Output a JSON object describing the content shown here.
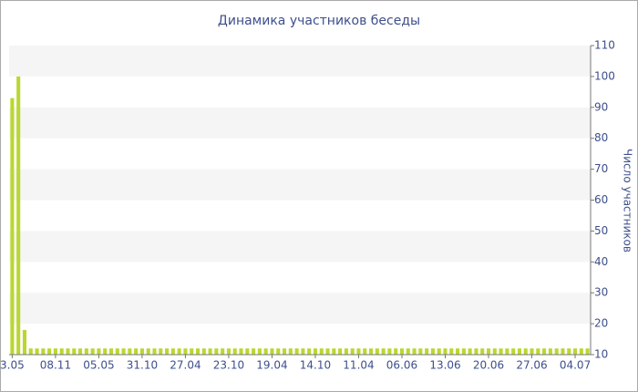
{
  "chart_data": {
    "type": "bar",
    "title": "Динамика участников беседы",
    "y_label": "Число участников",
    "categories": [
      "3.05",
      null,
      null,
      null,
      null,
      null,
      null,
      "08.11",
      null,
      null,
      null,
      null,
      null,
      null,
      "05.05",
      null,
      null,
      null,
      null,
      null,
      null,
      "31.10",
      null,
      null,
      null,
      null,
      null,
      null,
      "27.04",
      null,
      null,
      null,
      null,
      null,
      null,
      "23.10",
      null,
      null,
      null,
      null,
      null,
      null,
      "19.04",
      null,
      null,
      null,
      null,
      null,
      null,
      "14.10",
      null,
      null,
      null,
      null,
      null,
      null,
      "11.04",
      null,
      null,
      null,
      null,
      null,
      null,
      "06.06",
      null,
      null,
      null,
      null,
      null,
      null,
      "13.06",
      null,
      null,
      null,
      null,
      null,
      null,
      "20.06",
      null,
      null,
      null,
      null,
      null,
      null,
      "27.06",
      null,
      null,
      null,
      null,
      null,
      null,
      "04.07",
      null,
      null
    ],
    "values": [
      93,
      100,
      18,
      12,
      12,
      12,
      12,
      12,
      12,
      12,
      12,
      12,
      12,
      12,
      12,
      12,
      12,
      12,
      12,
      12,
      12,
      12,
      12,
      12,
      12,
      12,
      12,
      12,
      12,
      12,
      12,
      12,
      12,
      12,
      12,
      12,
      12,
      12,
      12,
      12,
      12,
      12,
      12,
      12,
      12,
      12,
      12,
      12,
      12,
      12,
      12,
      12,
      12,
      12,
      12,
      12,
      12,
      12,
      12,
      12,
      12,
      12,
      12,
      12,
      12,
      12,
      12,
      12,
      12,
      12,
      12,
      12,
      12,
      12,
      12,
      12,
      12,
      12,
      12,
      12,
      12,
      12,
      12,
      12,
      12,
      12,
      12,
      12,
      12,
      12,
      12,
      12,
      12,
      12
    ],
    "color": "#b9d731",
    "ylim": [
      10,
      110
    ],
    "yticks": [
      10,
      20,
      30,
      40,
      50,
      60,
      70,
      80,
      90,
      100,
      110
    ],
    "grid": true
  }
}
